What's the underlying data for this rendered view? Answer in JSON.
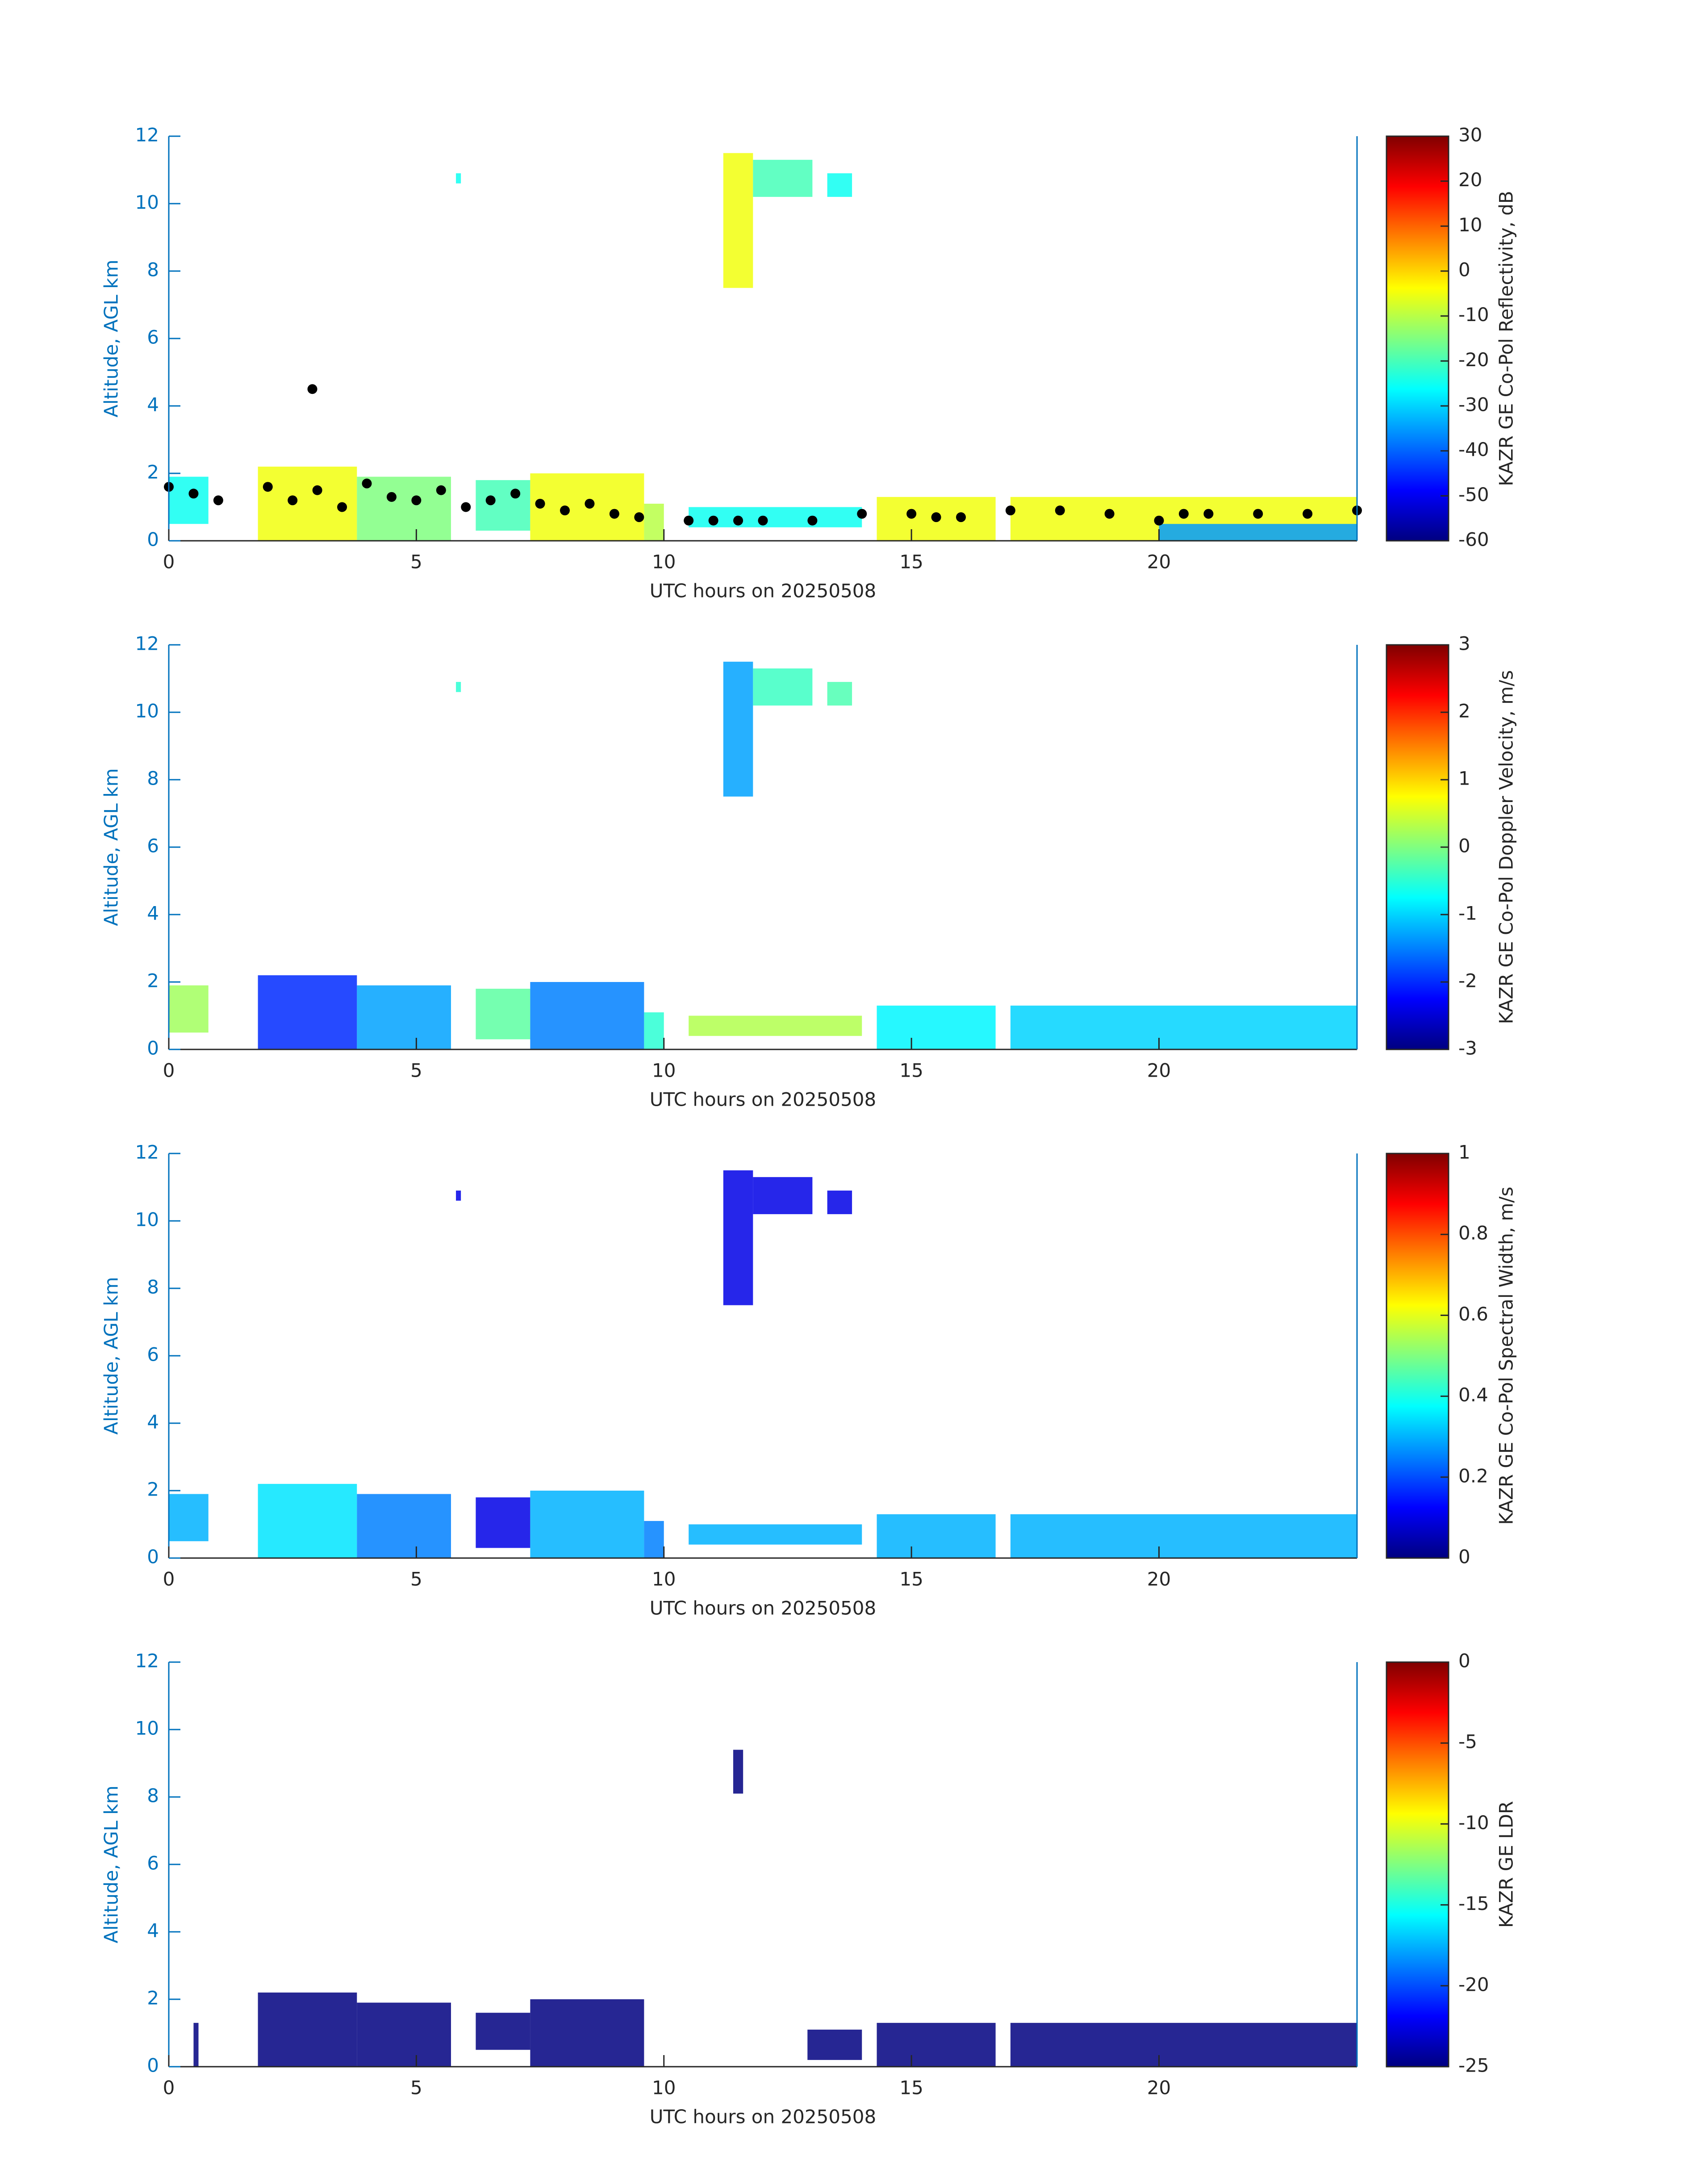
{
  "chart_data": [
    {
      "type": "heatmap",
      "x_label": "UTC hours on 20250508",
      "y_label": "Altitude, AGL km",
      "colorbar_label": "KAZR GE Co-Pol Reflectivity, dB",
      "xlim": [
        0,
        24
      ],
      "xticks": [
        0,
        5,
        10,
        15,
        20
      ],
      "ylim": [
        0,
        12
      ],
      "yticks": [
        0,
        2,
        4,
        6,
        8,
        10,
        12
      ],
      "clim": [
        -60,
        30
      ],
      "cticks": [
        -60,
        -50,
        -40,
        -30,
        -20,
        -10,
        0,
        10,
        20,
        30
      ],
      "cells": [
        {
          "x": [
            0,
            0.8
          ],
          "y": [
            0.5,
            1.9
          ],
          "value": -25
        },
        {
          "x": [
            1.8,
            3.8
          ],
          "y": [
            0,
            2.2
          ],
          "value": -5
        },
        {
          "x": [
            3.8,
            5.7
          ],
          "y": [
            0,
            1.9
          ],
          "value": -15
        },
        {
          "x": [
            6.2,
            7.3
          ],
          "y": [
            0.3,
            1.8
          ],
          "value": -20
        },
        {
          "x": [
            7.3,
            9.6
          ],
          "y": [
            0,
            2
          ],
          "value": -5
        },
        {
          "x": [
            9.6,
            10
          ],
          "y": [
            0,
            1.1
          ],
          "value": -10
        },
        {
          "x": [
            10.5,
            14
          ],
          "y": [
            0.4,
            1
          ],
          "value": -25
        },
        {
          "x": [
            14.3,
            16.7
          ],
          "y": [
            0,
            1.3
          ],
          "value": -5
        },
        {
          "x": [
            17,
            24
          ],
          "y": [
            0,
            1.3
          ],
          "value": -5
        },
        {
          "x": [
            20,
            24
          ],
          "y": [
            0,
            0.5
          ],
          "value": -35
        },
        {
          "x": [
            11.2,
            11.8
          ],
          "y": [
            7.5,
            11.5
          ],
          "value": -5
        },
        {
          "x": [
            11.8,
            13
          ],
          "y": [
            10.2,
            11.3
          ],
          "value": -20
        },
        {
          "x": [
            13.3,
            13.8
          ],
          "y": [
            10.2,
            10.9
          ],
          "value": -25
        },
        {
          "x": [
            5.8,
            5.9
          ],
          "y": [
            10.6,
            10.9
          ],
          "value": -25
        }
      ],
      "series": [
        {
          "color": "#000000",
          "x": [
            0,
            0.5,
            1,
            2,
            2.5,
            2.9,
            3,
            3.5,
            4,
            4.5,
            5,
            5.5,
            6,
            6.5,
            7,
            7.5,
            8,
            8.5,
            9,
            9.5,
            10.5,
            11,
            11.5,
            12,
            13,
            14,
            15,
            15.5,
            16,
            17,
            18,
            19,
            20,
            20.5,
            21,
            22,
            23,
            24
          ],
          "y": [
            1.6,
            1.4,
            1.2,
            1.6,
            1.2,
            4.5,
            1.5,
            1.0,
            1.7,
            1.3,
            1.2,
            1.5,
            1.0,
            1.2,
            1.4,
            1.1,
            0.9,
            1.1,
            0.8,
            0.7,
            0.6,
            0.6,
            0.6,
            0.6,
            0.6,
            0.8,
            0.8,
            0.7,
            0.7,
            0.9,
            0.9,
            0.8,
            0.6,
            0.8,
            0.8,
            0.8,
            0.8,
            0.9
          ]
        }
      ]
    },
    {
      "type": "heatmap",
      "x_label": "UTC hours on 20250508",
      "y_label": "Altitude, AGL km",
      "colorbar_label": "KAZR GE Co-Pol Doppler Velocity, m/s",
      "xlim": [
        0,
        24
      ],
      "xticks": [
        0,
        5,
        10,
        15,
        20
      ],
      "ylim": [
        0,
        12
      ],
      "yticks": [
        0,
        2,
        4,
        6,
        8,
        10,
        12
      ],
      "clim": [
        -3,
        3
      ],
      "cticks": [
        -3,
        -2,
        -1,
        0,
        1,
        2,
        3
      ],
      "cells": [
        {
          "x": [
            0,
            0.8
          ],
          "y": [
            0.5,
            1.9
          ],
          "value": 0.2
        },
        {
          "x": [
            1.8,
            3.8
          ],
          "y": [
            0,
            2.2
          ],
          "value": -2
        },
        {
          "x": [
            3.8,
            5.7
          ],
          "y": [
            0,
            1.9
          ],
          "value": -1.3
        },
        {
          "x": [
            6.2,
            7.3
          ],
          "y": [
            0.3,
            1.8
          ],
          "value": -0.2
        },
        {
          "x": [
            7.3,
            9.6
          ],
          "y": [
            0,
            2
          ],
          "value": -1.5
        },
        {
          "x": [
            9.6,
            10
          ],
          "y": [
            0,
            1.1
          ],
          "value": -0.5
        },
        {
          "x": [
            10.5,
            14
          ],
          "y": [
            0.4,
            1
          ],
          "value": 0.3
        },
        {
          "x": [
            14.3,
            16.7
          ],
          "y": [
            0,
            1.3
          ],
          "value": -0.8
        },
        {
          "x": [
            17,
            24
          ],
          "y": [
            0,
            1.3
          ],
          "value": -1
        },
        {
          "x": [
            11.2,
            11.8
          ],
          "y": [
            7.5,
            11.5
          ],
          "value": -1.3
        },
        {
          "x": [
            11.8,
            13
          ],
          "y": [
            10.2,
            11.3
          ],
          "value": -0.4
        },
        {
          "x": [
            13.3,
            13.8
          ],
          "y": [
            10.2,
            10.9
          ],
          "value": -0.3
        },
        {
          "x": [
            5.8,
            5.9
          ],
          "y": [
            10.6,
            10.9
          ],
          "value": -0.5
        }
      ]
    },
    {
      "type": "heatmap",
      "x_label": "UTC hours on 20250508",
      "y_label": "Altitude, AGL km",
      "colorbar_label": "KAZR GE Co-Pol Spectral Width, m/s",
      "xlim": [
        0,
        24
      ],
      "xticks": [
        0,
        5,
        10,
        15,
        20
      ],
      "ylim": [
        0,
        12
      ],
      "yticks": [
        0,
        2,
        4,
        6,
        8,
        10,
        12
      ],
      "clim": [
        0,
        1
      ],
      "cticks": [
        0,
        0.2,
        0.4,
        0.6,
        0.8,
        1
      ],
      "cells": [
        {
          "x": [
            0,
            0.8
          ],
          "y": [
            0.5,
            1.9
          ],
          "value": 0.3
        },
        {
          "x": [
            1.8,
            3.8
          ],
          "y": [
            0,
            2.2
          ],
          "value": 0.35
        },
        {
          "x": [
            3.8,
            5.7
          ],
          "y": [
            0,
            1.9
          ],
          "value": 0.25
        },
        {
          "x": [
            6.2,
            7.3
          ],
          "y": [
            0.3,
            1.8
          ],
          "value": 0.1
        },
        {
          "x": [
            7.3,
            9.6
          ],
          "y": [
            0,
            2
          ],
          "value": 0.3
        },
        {
          "x": [
            9.6,
            10
          ],
          "y": [
            0,
            1.1
          ],
          "value": 0.25
        },
        {
          "x": [
            10.5,
            14
          ],
          "y": [
            0.4,
            1
          ],
          "value": 0.3
        },
        {
          "x": [
            14.3,
            16.7
          ],
          "y": [
            0,
            1.3
          ],
          "value": 0.3
        },
        {
          "x": [
            17,
            24
          ],
          "y": [
            0,
            1.3
          ],
          "value": 0.3
        },
        {
          "x": [
            11.2,
            11.8
          ],
          "y": [
            7.5,
            11.5
          ],
          "value": 0.1
        },
        {
          "x": [
            11.8,
            13
          ],
          "y": [
            10.2,
            11.3
          ],
          "value": 0.1
        },
        {
          "x": [
            13.3,
            13.8
          ],
          "y": [
            10.2,
            10.9
          ],
          "value": 0.1
        },
        {
          "x": [
            5.8,
            5.9
          ],
          "y": [
            10.6,
            10.9
          ],
          "value": 0.1
        }
      ]
    },
    {
      "type": "heatmap",
      "x_label": "UTC hours on 20250508",
      "y_label": "Altitude, AGL km",
      "colorbar_label": "KAZR GE LDR",
      "xlim": [
        0,
        24
      ],
      "xticks": [
        0,
        5,
        10,
        15,
        20
      ],
      "ylim": [
        0,
        12
      ],
      "yticks": [
        0,
        2,
        4,
        6,
        8,
        10,
        12
      ],
      "clim": [
        -25,
        0
      ],
      "cticks": [
        -25,
        -20,
        -15,
        -10,
        -5,
        0
      ],
      "cells": [
        {
          "x": [
            0.5,
            0.6
          ],
          "y": [
            0,
            1.3
          ],
          "value": -25
        },
        {
          "x": [
            1.8,
            3.8
          ],
          "y": [
            0,
            2.2
          ],
          "value": -25
        },
        {
          "x": [
            3.8,
            5.7
          ],
          "y": [
            0,
            1.9
          ],
          "value": -25
        },
        {
          "x": [
            6.2,
            7.3
          ],
          "y": [
            0.5,
            1.6
          ],
          "value": -25
        },
        {
          "x": [
            7.3,
            9.6
          ],
          "y": [
            0,
            2
          ],
          "value": -25
        },
        {
          "x": [
            12.9,
            14
          ],
          "y": [
            0.2,
            1.1
          ],
          "value": -25
        },
        {
          "x": [
            14.3,
            16.7
          ],
          "y": [
            0,
            1.3
          ],
          "value": -25
        },
        {
          "x": [
            17,
            24
          ],
          "y": [
            0,
            1.3
          ],
          "value": -25
        },
        {
          "x": [
            11.4,
            11.6
          ],
          "y": [
            8.1,
            9.4
          ],
          "value": -25
        }
      ]
    }
  ]
}
